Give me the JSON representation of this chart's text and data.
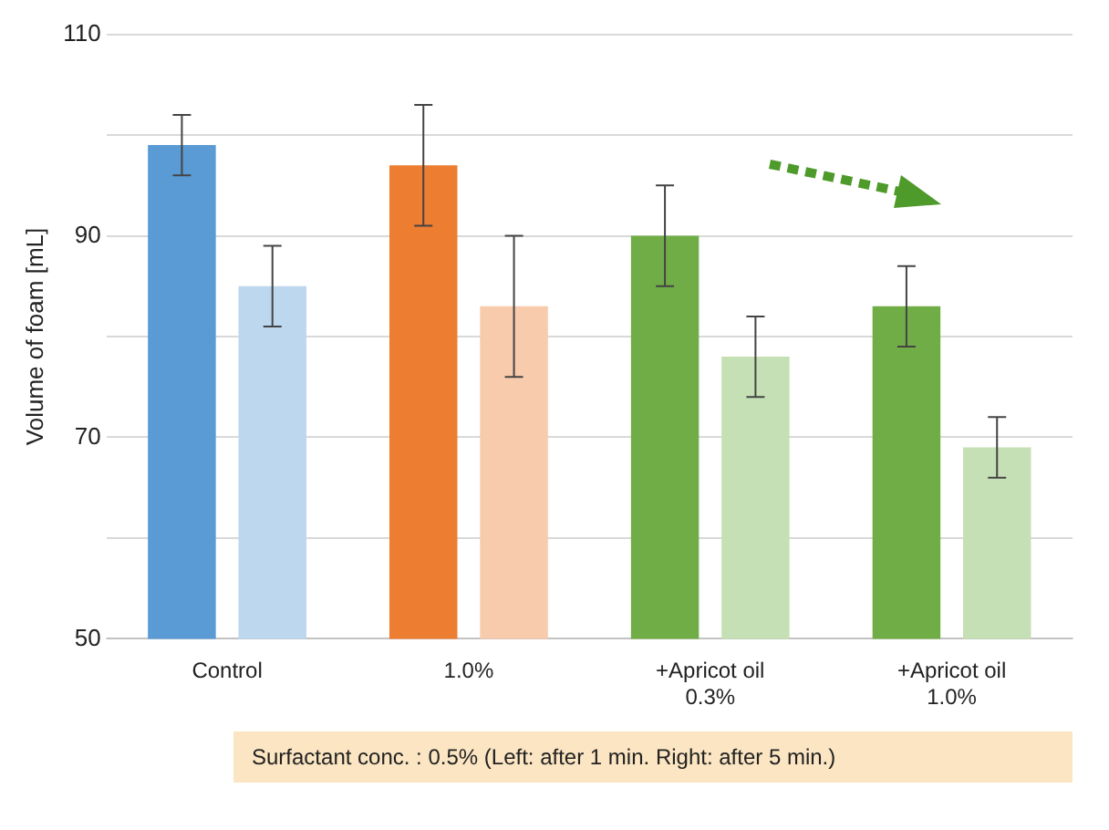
{
  "chart_data": {
    "type": "bar",
    "ylabel": "Volume of foam [mL]",
    "categories": [
      "Control",
      "1.0%",
      "+Apricot oil\n0.3%",
      "+Apricot oil\n1.0%"
    ],
    "series": [
      {
        "colors": [
          "#5b9bd5",
          "#ed7d31",
          "#70ad47",
          "#70ad47"
        ],
        "values": [
          99,
          97,
          90,
          83
        ],
        "errors": [
          [
            96,
            102
          ],
          [
            91,
            103
          ],
          [
            85,
            95
          ],
          [
            79,
            87
          ]
        ]
      },
      {
        "colors": [
          "#bdd7ee",
          "#f8cbad",
          "#c5e0b4",
          "#c5e0b4"
        ],
        "values": [
          85,
          83,
          78,
          69
        ],
        "errors": [
          [
            81,
            89
          ],
          [
            76,
            90
          ],
          [
            74,
            82
          ],
          [
            66,
            72
          ]
        ]
      }
    ],
    "ylim": [
      50,
      110
    ],
    "yticks": [
      50,
      {
        "value": 60,
        "label": null
      },
      70,
      {
        "value": 80,
        "label": null
      },
      90,
      {
        "value": 100,
        "label": null
      },
      110
    ],
    "grid": "y",
    "legend": false,
    "annotations": [
      "Surfactant conc. : 0.5%   (Left: after 1 min.   Right: after 5 min.)"
    ]
  }
}
